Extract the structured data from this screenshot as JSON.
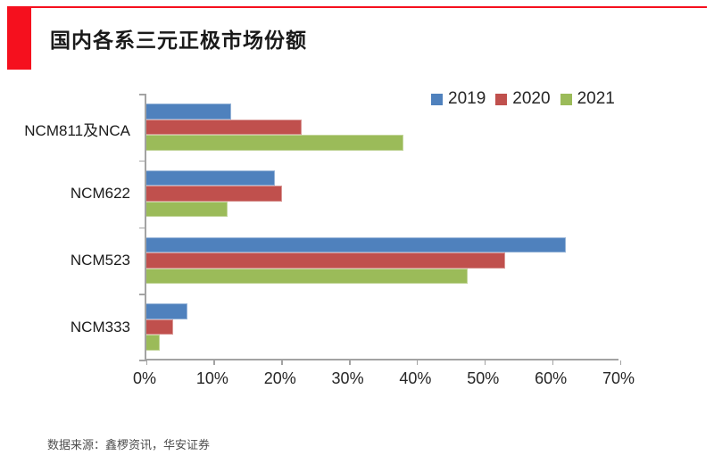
{
  "header": {
    "title": "国内各系三元正极市场份额",
    "accent_color": "#f5101e"
  },
  "footer": {
    "source": "数据来源：鑫椤资讯，华安证券"
  },
  "chart_data": {
    "type": "bar",
    "orientation": "horizontal",
    "title": "国内各系三元正极市场份额",
    "categories": [
      "NCM811及NCA",
      "NCM622",
      "NCM523",
      "NCM333"
    ],
    "series": [
      {
        "name": "2019",
        "color": "#4f81bd",
        "border_color": "#95b3d7",
        "values": [
          12.5,
          19,
          62,
          6
        ]
      },
      {
        "name": "2020",
        "color": "#c0504d",
        "border_color": "#d99694",
        "values": [
          23,
          20,
          53,
          4
        ]
      },
      {
        "name": "2021",
        "color": "#9bbb59",
        "border_color": "#c3d69b",
        "values": [
          38,
          12,
          47.5,
          2
        ]
      }
    ],
    "x_axis": {
      "min": 0,
      "max": 70,
      "tick_step": 10,
      "tick_labels": [
        "0%",
        "10%",
        "20%",
        "30%",
        "40%",
        "50%",
        "60%",
        "70%"
      ]
    },
    "y_axis_label": "",
    "xlabel": "",
    "legend_position": "top-right",
    "grid": false,
    "axis_color": "#a3a3a3"
  }
}
